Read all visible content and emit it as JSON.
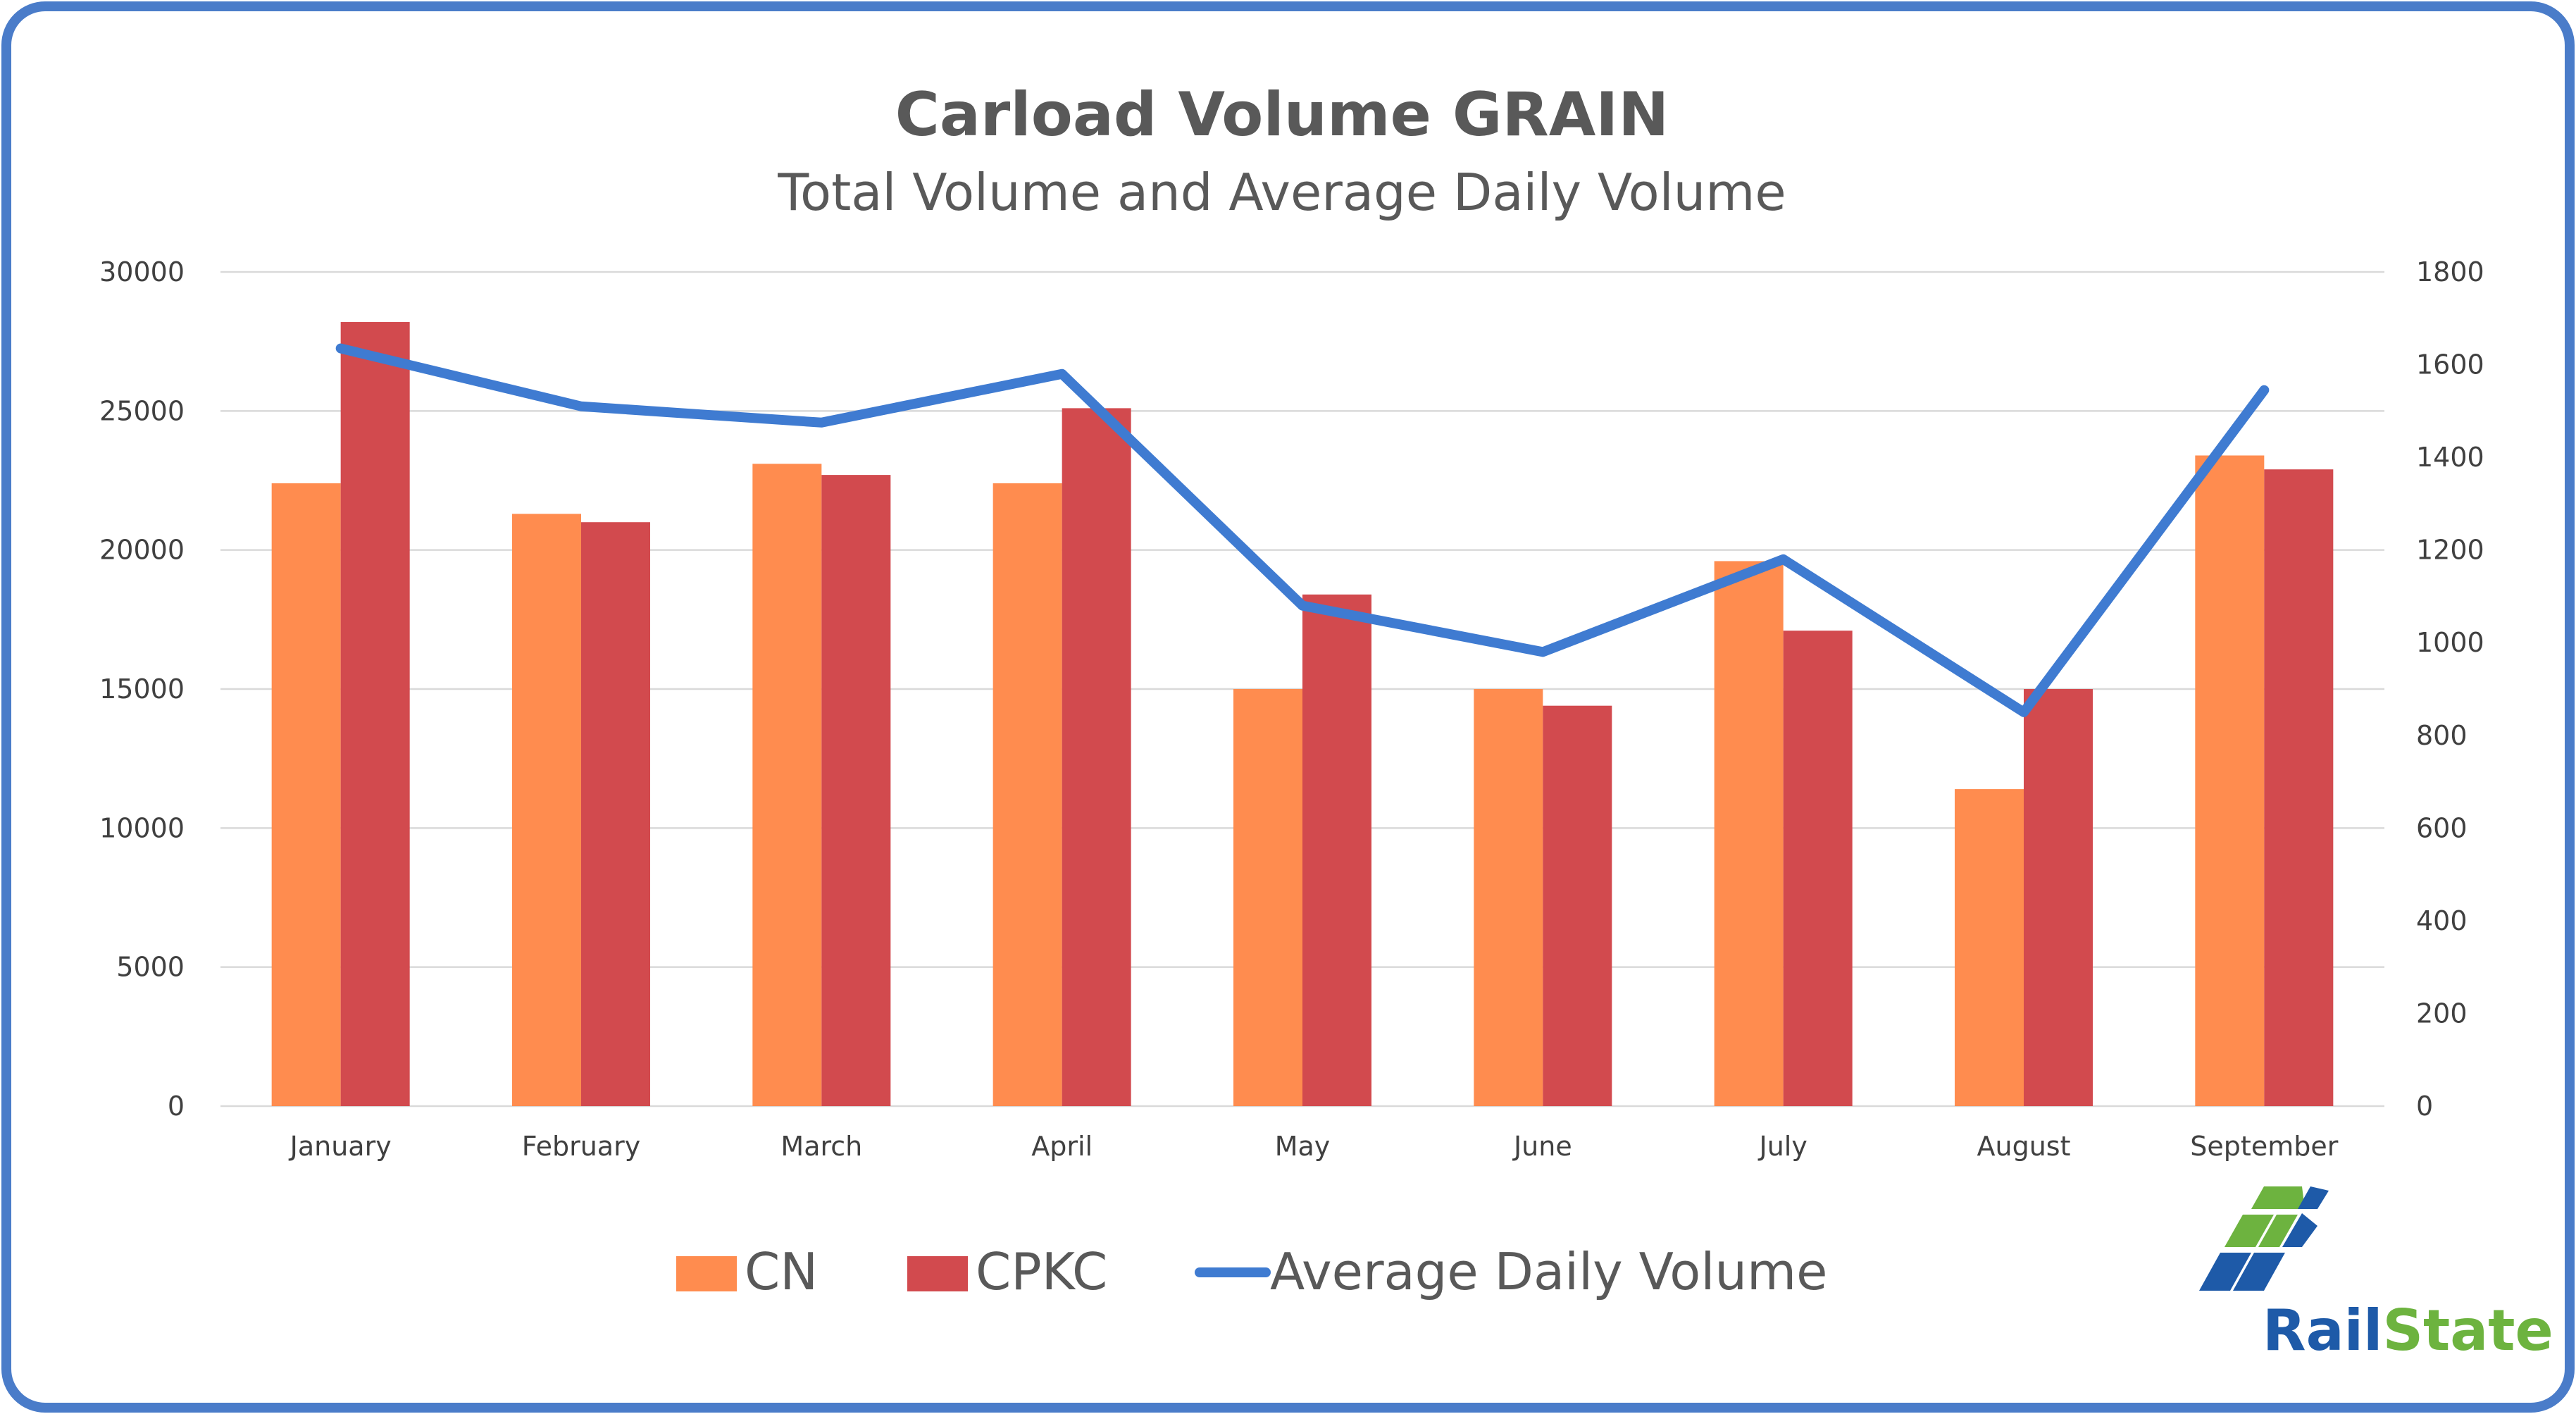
{
  "chart_data": {
    "type": "bar",
    "title": "Carload Volume GRAIN",
    "subtitle": "Total Volume and Average Daily Volume",
    "categories": [
      "January",
      "February",
      "March",
      "April",
      "May",
      "June",
      "July",
      "August",
      "September"
    ],
    "series": [
      {
        "name": "CN",
        "type": "bar",
        "axis": "left",
        "color": "#FF8C4F",
        "values": [
          22400,
          21300,
          23100,
          22400,
          15000,
          15000,
          19600,
          11400,
          23400
        ]
      },
      {
        "name": "CPKC",
        "type": "bar",
        "axis": "left",
        "color": "#D24A4E",
        "values": [
          28200,
          21000,
          22700,
          25100,
          18400,
          14400,
          17100,
          15000,
          22900
        ]
      },
      {
        "name": "Average Daily Volume",
        "type": "line",
        "axis": "right",
        "color": "#3F7BD1",
        "values": [
          1635,
          1510,
          1475,
          1580,
          1080,
          980,
          1180,
          850,
          1545
        ]
      }
    ],
    "y_left": {
      "min": 0,
      "max": 30000,
      "ticks": [
        "0",
        "5000",
        "10000",
        "15000",
        "20000",
        "25000",
        "30000"
      ]
    },
    "y_right": {
      "min": 0,
      "max": 1800,
      "ticks": [
        "0",
        "200",
        "400",
        "600",
        "800",
        "1000",
        "1200",
        "1400",
        "1600",
        "1800"
      ]
    },
    "grid": true,
    "legend_position": "bottom"
  },
  "legend": {
    "items": [
      "CN",
      "CPKC",
      "Average Daily Volume"
    ]
  },
  "logo": {
    "rail": "Rail",
    "state": "State",
    "rail_color": "#1E5AA8",
    "state_color": "#6DB33F"
  },
  "colors": {
    "border": "#4A7CC9",
    "grid": "#D9D9D9"
  }
}
